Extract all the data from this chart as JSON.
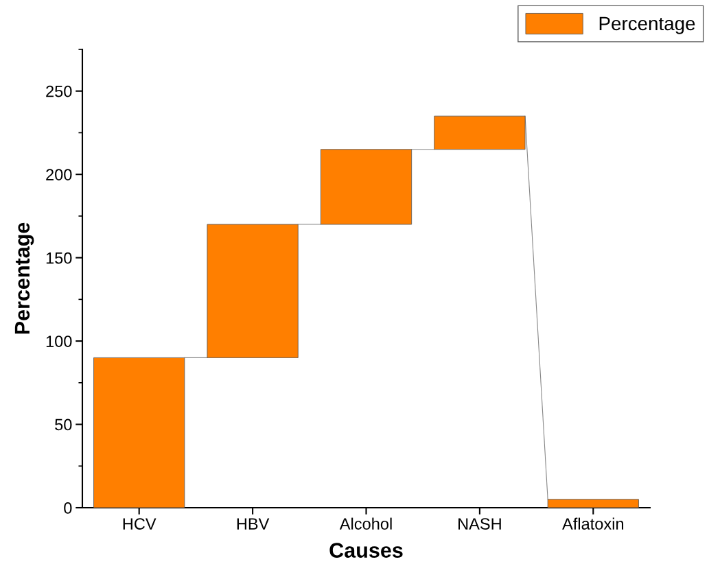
{
  "chart_data": {
    "type": "bar",
    "xlabel": "Causes",
    "ylabel": "Percentage",
    "categories": [
      "HCV",
      "HBV",
      "Alcohol",
      "NASH",
      "Aflatoxin"
    ],
    "series": [
      {
        "name": "Percentage",
        "color": "#ff7f00",
        "values": [
          90,
          80,
          45,
          20,
          5
        ],
        "base": [
          0,
          90,
          170,
          215,
          0
        ]
      }
    ],
    "ylim": [
      0,
      275
    ],
    "yticks": [
      0,
      50,
      100,
      150,
      200,
      250
    ],
    "grid": false,
    "legend": "top right"
  }
}
